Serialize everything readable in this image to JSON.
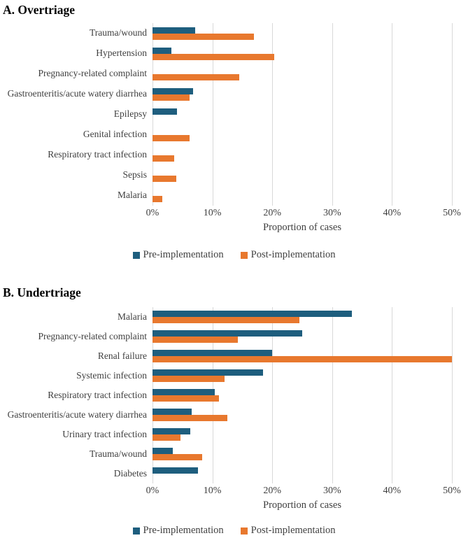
{
  "page": {
    "background": "#ffffff"
  },
  "colors": {
    "pre_implementation": "#1e5e7e",
    "post_implementation": "#e8782e",
    "gridline": "#d9d9d9",
    "axis_text": "#3f3f3f",
    "title_text": "#000000"
  },
  "legend": {
    "pre_label": "Pre-implementation",
    "post_label": "Post-implementation"
  },
  "chart_data": [
    {
      "type": "bar",
      "orientation": "horizontal",
      "panel_label": "A. Overtriage",
      "categories": [
        "Trauma/wound",
        "Hypertension",
        "Pregnancy-related complaint",
        "Gastroenteritis/acute watery diarrhea",
        "Epilepsy",
        "Genital infection",
        "Respiratory tract infection",
        "Sepsis",
        "Malaria"
      ],
      "series": [
        {
          "name": "Pre-implementation",
          "color": "#1e5e7e",
          "values": [
            7.1,
            3.2,
            0,
            6.8,
            4.1,
            0,
            0,
            0,
            0
          ]
        },
        {
          "name": "Post-implementation",
          "color": "#e8782e",
          "values": [
            16.9,
            20.3,
            14.5,
            6.2,
            0,
            6.2,
            3.6,
            4.0,
            1.6
          ]
        }
      ],
      "xlabel": "Proportion of cases",
      "xlim": [
        0,
        50
      ],
      "x_ticks": [
        "0%",
        "10%",
        "20%",
        "30%",
        "40%",
        "50%"
      ],
      "grid": "vertical",
      "legend_position": "bottom-center"
    },
    {
      "type": "bar",
      "orientation": "horizontal",
      "panel_label": "B. Undertriage",
      "categories": [
        "Malaria",
        "Pregnancy-related complaint",
        "Renal failure",
        "Systemic infection",
        "Respiratory tract infection",
        "Gastroenteritis/acute watery diarrhea",
        "Urinary tract infection",
        "Trauma/wound",
        "Diabetes"
      ],
      "series": [
        {
          "name": "Pre-implementation",
          "color": "#1e5e7e",
          "values": [
            33.3,
            25.0,
            20.0,
            18.5,
            10.4,
            6.6,
            6.3,
            3.4,
            7.6
          ]
        },
        {
          "name": "Post-implementation",
          "color": "#e8782e",
          "values": [
            24.5,
            14.2,
            50.0,
            12.0,
            11.1,
            12.5,
            4.7,
            8.3,
            0
          ]
        }
      ],
      "xlabel": "Proportion of cases",
      "xlim": [
        0,
        50
      ],
      "x_ticks": [
        "0%",
        "10%",
        "20%",
        "30%",
        "40%",
        "50%"
      ],
      "grid": "vertical",
      "legend_position": "bottom-center"
    }
  ]
}
